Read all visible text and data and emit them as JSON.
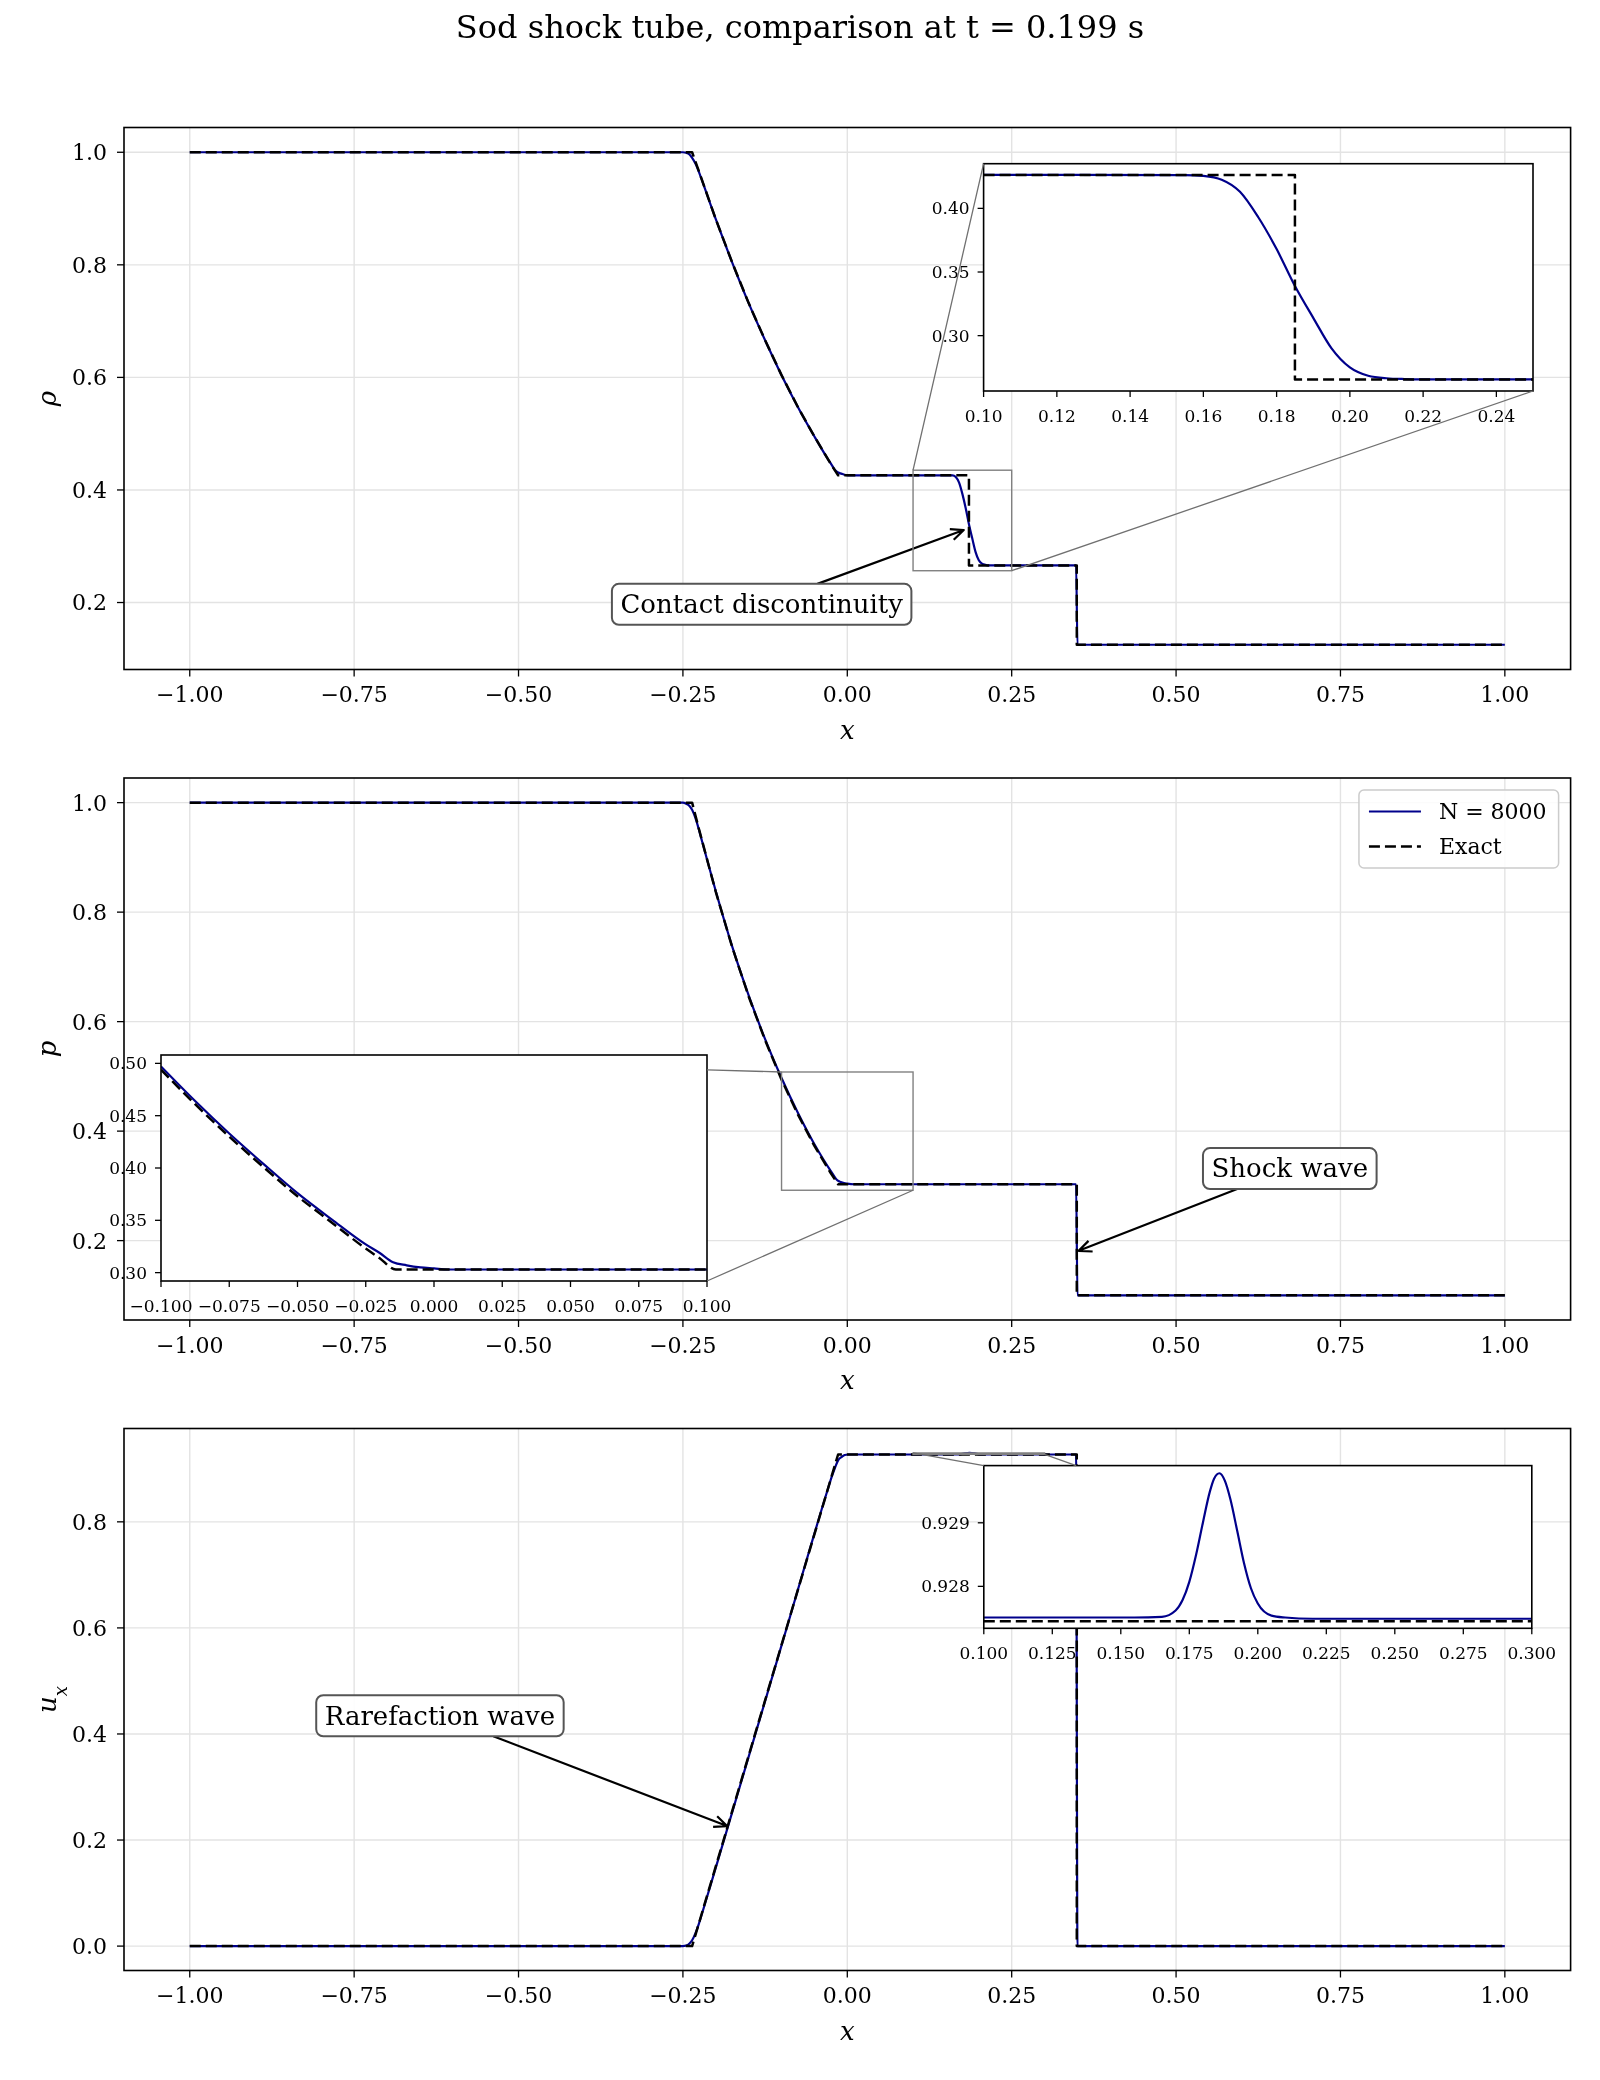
{
  "chart_data": [
    {
      "type": "line",
      "title": "Sod shock tube, comparison at t = 0.199 s",
      "xlabel": "x",
      "ylabel": "ρ",
      "xlim": [
        -1.1,
        1.1
      ],
      "ylim": [
        0.081,
        1.044
      ],
      "xticks": [
        {
          "value": -1,
          "label": "−1.00"
        },
        {
          "value": -0.75,
          "label": "−0.75"
        },
        {
          "value": -0.5,
          "label": "−0.50"
        },
        {
          "value": -0.25,
          "label": "−0.25"
        },
        {
          "value": 0,
          "label": "0.00"
        },
        0.25,
        {
          "value": 0.5,
          "label": "0.50"
        },
        0.75,
        {
          "value": 1,
          "label": "1.00"
        }
      ],
      "yticks": [
        0.2,
        0.4,
        0.6,
        0.8,
        {
          "value": 1,
          "label": "1.0"
        }
      ],
      "grid": true,
      "series": [
        {
          "color": "#00008b",
          "x": [
            -1,
            -0.25,
            -0.245,
            -0.24,
            -0.236,
            -0.231,
            -0.226,
            -0.221,
            -0.2,
            -0.175,
            -0.15,
            -0.125,
            -0.1,
            -0.075,
            -0.05,
            -0.029,
            -0.024,
            -0.019,
            -0.014,
            -0.009,
            -0.004,
            0.001,
            0.155,
            0.16,
            0.165,
            0.17,
            0.175,
            0.18,
            0.185,
            0.19,
            0.195,
            0.2,
            0.205,
            0.21,
            0.215,
            0.22,
            0.348,
            0.35,
            1
          ],
          "values": [
            1,
            1,
            0.999,
            0.996,
            0.99,
            0.98,
            0.966,
            0.95,
            0.881,
            0.804,
            0.732,
            0.666,
            0.604,
            0.547,
            0.495,
            0.454,
            0.445,
            0.436,
            0.431,
            0.429,
            0.427,
            0.426,
            0.426,
            0.426,
            0.423,
            0.413,
            0.393,
            0.368,
            0.339,
            0.314,
            0.29,
            0.275,
            0.269,
            0.267,
            0.266,
            0.266,
            0.266,
            0.125,
            0.125
          ]
        },
        {
          "color": "#000000",
          "line_style": "dashed",
          "x": [
            -1,
            -0.236,
            -0.225,
            -0.2,
            -0.175,
            -0.15,
            -0.125,
            -0.1,
            -0.075,
            -0.05,
            -0.025,
            -0.014,
            0.185,
            0.185,
            0.349,
            0.349,
            1
          ],
          "values": [
            1,
            1,
            0.964,
            0.881,
            0.804,
            0.732,
            0.666,
            0.604,
            0.547,
            0.495,
            0.446,
            0.426,
            0.426,
            0.266,
            0.266,
            0.125,
            0.125
          ]
        }
      ],
      "annotations": [
        {
          "text": "Contact discontinuity",
          "x": 0.18,
          "y": 0.33
        }
      ]
    },
    {
      "type": "line",
      "xlim": [
        0.1,
        0.25
      ],
      "ylim": [
        0.2565,
        0.4351
      ],
      "xticks": [
        {
          "value": 0.1,
          "label": "0.10"
        },
        0.12,
        0.14,
        0.16,
        0.18,
        {
          "value": 0.2,
          "label": "0.20"
        },
        0.22,
        0.24
      ],
      "yticks": [
        {
          "value": 0.3,
          "label": "0.30"
        },
        0.35,
        {
          "value": 0.4,
          "label": "0.40"
        }
      ],
      "series": [
        {
          "color": "#00008b",
          "x": [
            0.1,
            0.155,
            0.16,
            0.165,
            0.17,
            0.175,
            0.18,
            0.185,
            0.19,
            0.195,
            0.2,
            0.205,
            0.21,
            0.215,
            0.22,
            0.25
          ],
          "values": [
            0.4263,
            0.4262,
            0.4255,
            0.4225,
            0.413,
            0.393,
            0.368,
            0.339,
            0.314,
            0.29,
            0.275,
            0.2685,
            0.2665,
            0.2659,
            0.2657,
            0.2656
          ]
        },
        {
          "color": "#000000",
          "line_style": "dashed",
          "x": [
            0.1,
            0.185,
            0.185,
            0.25
          ],
          "values": [
            0.4263,
            0.4263,
            0.2656,
            0.2656
          ]
        }
      ]
    },
    {
      "type": "line",
      "xlabel": "x",
      "ylabel": "p",
      "xlim": [
        -1.1,
        1.1
      ],
      "ylim": [
        0.055,
        1.045
      ],
      "xticks": [
        {
          "value": -1,
          "label": "−1.00"
        },
        {
          "value": -0.75,
          "label": "−0.75"
        },
        {
          "value": -0.5,
          "label": "−0.50"
        },
        {
          "value": -0.25,
          "label": "−0.25"
        },
        {
          "value": 0,
          "label": "0.00"
        },
        0.25,
        {
          "value": 0.5,
          "label": "0.50"
        },
        0.75,
        {
          "value": 1,
          "label": "1.00"
        }
      ],
      "yticks": [
        0.2,
        0.4,
        0.6,
        0.8,
        {
          "value": 1,
          "label": "1.0"
        }
      ],
      "grid": true,
      "legend": "top right",
      "series": [
        {
          "name": "N = 8000",
          "color": "#00008b",
          "x": [
            -1,
            -0.25,
            -0.245,
            -0.24,
            -0.236,
            -0.231,
            -0.226,
            -0.221,
            -0.2,
            -0.175,
            -0.15,
            -0.125,
            -0.1,
            -0.075,
            -0.05,
            -0.025,
            -0.015,
            -0.01,
            -0.005,
            0,
            0.01,
            0.348,
            0.35,
            1
          ],
          "values": [
            1,
            1,
            0.998,
            0.994,
            0.987,
            0.972,
            0.952,
            0.93,
            0.838,
            0.737,
            0.648,
            0.568,
            0.497,
            0.433,
            0.376,
            0.327,
            0.31,
            0.307,
            0.305,
            0.304,
            0.303,
            0.303,
            0.1,
            0.1
          ]
        },
        {
          "name": "Exact",
          "color": "#000000",
          "line_style": "dashed",
          "x": [
            -1,
            -0.236,
            -0.225,
            -0.2,
            -0.175,
            -0.15,
            -0.125,
            -0.1,
            -0.075,
            -0.05,
            -0.025,
            -0.014,
            0.349,
            0.349,
            1
          ],
          "values": [
            1,
            1,
            0.949,
            0.837,
            0.736,
            0.646,
            0.566,
            0.494,
            0.43,
            0.373,
            0.323,
            0.303,
            0.303,
            0.1,
            0.1
          ]
        }
      ],
      "annotations": [
        {
          "text": "Shock wave",
          "x": 0.349,
          "y": 0.18
        }
      ]
    },
    {
      "type": "line",
      "xlim": [
        -0.1,
        0.1
      ],
      "ylim": [
        0.292,
        0.508
      ],
      "xticks": [
        {
          "value": -0.1,
          "label": "−0.100"
        },
        {
          "value": -0.075,
          "label": "−0.075"
        },
        {
          "value": -0.05,
          "label": "−0.050"
        },
        {
          "value": -0.025,
          "label": "−0.025"
        },
        {
          "value": 0,
          "label": "0.000"
        },
        0.025,
        {
          "value": 0.05,
          "label": "0.050"
        },
        0.075,
        {
          "value": 0.1,
          "label": "0.100"
        }
      ],
      "yticks": [
        {
          "value": 0.3,
          "label": "0.30"
        },
        0.35,
        {
          "value": 0.4,
          "label": "0.40"
        },
        0.45,
        {
          "value": 0.5,
          "label": "0.50"
        }
      ],
      "series": [
        {
          "color": "#00008b",
          "x": [
            -0.1,
            -0.0875,
            -0.075,
            -0.0625,
            -0.05,
            -0.0375,
            -0.025,
            -0.02,
            -0.015,
            -0.01,
            -0.005,
            0,
            0.005,
            0.01,
            0.02,
            0.1
          ],
          "values": [
            0.497,
            0.464,
            0.433,
            0.404,
            0.376,
            0.351,
            0.327,
            0.319,
            0.31,
            0.307,
            0.305,
            0.304,
            0.303,
            0.303,
            0.303,
            0.303
          ]
        },
        {
          "color": "#000000",
          "line_style": "dashed",
          "x": [
            -0.1,
            -0.0875,
            -0.075,
            -0.0625,
            -0.05,
            -0.0375,
            -0.025,
            -0.02,
            -0.014,
            0.1
          ],
          "values": [
            0.494,
            0.461,
            0.43,
            0.401,
            0.373,
            0.348,
            0.323,
            0.314,
            0.303,
            0.303
          ]
        }
      ]
    },
    {
      "type": "line",
      "xlabel": "x",
      "ylabel": "u$_{x}$",
      "xlim": [
        -1.1,
        1.1
      ],
      "ylim": [
        -0.046,
        0.976
      ],
      "xticks": [
        {
          "value": -1,
          "label": "−1.00"
        },
        {
          "value": -0.75,
          "label": "−0.75"
        },
        {
          "value": -0.5,
          "label": "−0.50"
        },
        {
          "value": -0.25,
          "label": "−0.25"
        },
        {
          "value": 0,
          "label": "0.00"
        },
        0.25,
        {
          "value": 0.5,
          "label": "0.50"
        },
        0.75,
        {
          "value": 1,
          "label": "1.00"
        }
      ],
      "yticks": [
        {
          "value": 0,
          "label": "0.0"
        },
        0.2,
        0.4,
        0.6,
        0.8
      ],
      "grid": true,
      "series": [
        {
          "color": "#00008b",
          "x": [
            -1,
            -0.25,
            -0.245,
            -0.24,
            -0.236,
            -0.231,
            -0.226,
            -0.221,
            -0.2,
            -0.1,
            -0.03,
            -0.024,
            -0.019,
            -0.014,
            -0.009,
            -0.004,
            0.001,
            0.17,
            0.178,
            0.186,
            0.194,
            0.202,
            0.348,
            0.35,
            1
          ],
          "values": [
            0,
            0,
            0.001,
            0.005,
            0.011,
            0.024,
            0.041,
            0.061,
            0.148,
            0.567,
            0.86,
            0.884,
            0.901,
            0.916,
            0.922,
            0.926,
            0.927,
            0.927,
            0.929,
            0.93,
            0.929,
            0.927,
            0.927,
            0,
            0
          ]
        },
        {
          "color": "#000000",
          "line_style": "dashed",
          "x": [
            -1,
            -0.236,
            -0.014,
            0.349,
            0.349,
            1
          ],
          "values": [
            0,
            0,
            0.927,
            0.927,
            0,
            0
          ]
        }
      ],
      "annotations": [
        {
          "text": "Rarefaction wave",
          "x": -0.18,
          "y": 0.225
        }
      ]
    },
    {
      "type": "line",
      "xlim": [
        0.1,
        0.3
      ],
      "ylim": [
        0.92734,
        0.9299
      ],
      "xticks": [
        {
          "value": 0.1,
          "label": "0.100"
        },
        0.125,
        {
          "value": 0.15,
          "label": "0.150"
        },
        0.175,
        {
          "value": 0.2,
          "label": "0.200"
        },
        0.225,
        {
          "value": 0.25,
          "label": "0.250"
        },
        0.275,
        {
          "value": 0.3,
          "label": "0.300"
        }
      ],
      "yticks": [
        0.928,
        0.929
      ],
      "series": [
        {
          "color": "#00008b",
          "x": [
            0.1,
            0.155,
            0.165,
            0.17,
            0.1725,
            0.175,
            0.1775,
            0.18,
            0.1825,
            0.184,
            0.186,
            0.188,
            0.19,
            0.1925,
            0.195,
            0.1975,
            0.2,
            0.205,
            0.21,
            0.22,
            0.3
          ],
          "values": [
            0.92751,
            0.92751,
            0.92752,
            0.92762,
            0.92778,
            0.92807,
            0.9285,
            0.92901,
            0.92949,
            0.92969,
            0.92978,
            0.92966,
            0.92937,
            0.92887,
            0.92836,
            0.92797,
            0.92773,
            0.92754,
            0.92751,
            0.92749,
            0.92749
          ]
        },
        {
          "color": "#000000",
          "line_style": "dashed",
          "x": [
            0.1,
            0.3
          ],
          "values": [
            0.92745,
            0.92745
          ]
        }
      ]
    }
  ]
}
